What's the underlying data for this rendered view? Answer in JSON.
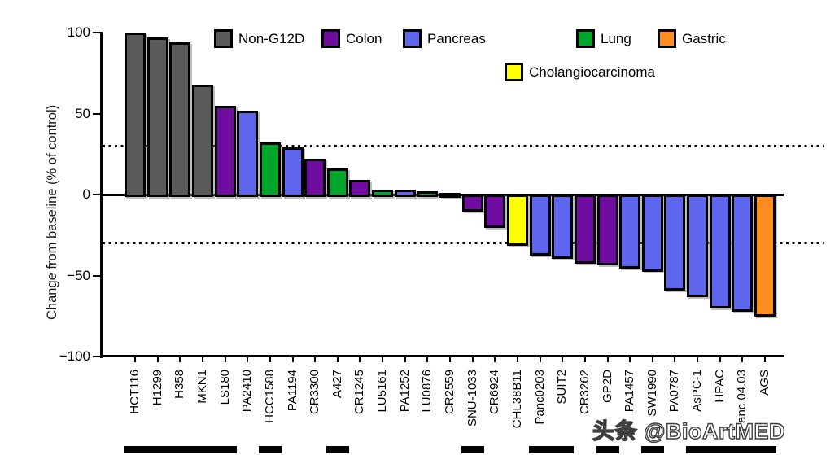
{
  "watermark": "头条 @BioArtMED",
  "chart_data": {
    "type": "bar",
    "title": "",
    "xlabel": "",
    "ylabel": "Change from baseline (% of control)",
    "ylim": [
      -100,
      100
    ],
    "grid": false,
    "legend_position": "top",
    "yticks": [
      {
        "label": "100",
        "value": 100
      },
      {
        "label": "50",
        "value": 50
      },
      {
        "label": "0",
        "value": 0
      },
      {
        "label": "−50",
        "value": -50
      },
      {
        "label": "−100",
        "value": -100
      }
    ],
    "reference_lines": [
      30,
      -30
    ],
    "legend": [
      {
        "label": "Non-G12D",
        "category": "non_g12d",
        "color": "#5A5A5A"
      },
      {
        "label": "Colon",
        "category": "colon",
        "color": "#6E0DA0"
      },
      {
        "label": "Pancreas",
        "category": "pancreas",
        "color": "#5F66EE"
      },
      {
        "label": "Lung",
        "category": "lung",
        "color": "#00A52B"
      },
      {
        "label": "Gastric",
        "category": "gastric",
        "color": "#FF8C1E"
      },
      {
        "label": "Cholangiocarcinoma",
        "category": "cholangiocarcinoma",
        "color": "#FFFF00"
      }
    ],
    "bars": [
      {
        "label": "HCT116",
        "category": "non_g12d",
        "value": 100
      },
      {
        "label": "H1299",
        "category": "non_g12d",
        "value": 97
      },
      {
        "label": "H358",
        "category": "non_g12d",
        "value": 94
      },
      {
        "label": "MKN1",
        "category": "non_g12d",
        "value": 68
      },
      {
        "label": "LS180",
        "category": "colon",
        "value": 55
      },
      {
        "label": "PA2410",
        "category": "pancreas",
        "value": 52
      },
      {
        "label": "HCC1588",
        "category": "lung",
        "value": 32
      },
      {
        "label": "PA1194",
        "category": "pancreas",
        "value": 29
      },
      {
        "label": "CR3300",
        "category": "colon",
        "value": 22
      },
      {
        "label": "A427",
        "category": "lung",
        "value": 16
      },
      {
        "label": "CR1245",
        "category": "colon",
        "value": 9
      },
      {
        "label": "LU5161",
        "category": "lung",
        "value": 3
      },
      {
        "label": "PA1252",
        "category": "pancreas",
        "value": 3
      },
      {
        "label": "LU0876",
        "category": "lung",
        "value": 2
      },
      {
        "label": "CR2559",
        "category": "colon",
        "value": 1
      },
      {
        "label": "SNU-1033",
        "category": "colon",
        "value": -9
      },
      {
        "label": "CR6924",
        "category": "colon",
        "value": -19
      },
      {
        "label": "CHL38B11",
        "category": "cholangiocarcinoma",
        "value": -30
      },
      {
        "label": "Panc0203",
        "category": "pancreas",
        "value": -36
      },
      {
        "label": "SUIT2",
        "category": "pancreas",
        "value": -38
      },
      {
        "label": "CR3262",
        "category": "colon",
        "value": -41
      },
      {
        "label": "GP2D",
        "category": "colon",
        "value": -42
      },
      {
        "label": "PA1457",
        "category": "pancreas",
        "value": -44
      },
      {
        "label": "SW1990",
        "category": "pancreas",
        "value": -46
      },
      {
        "label": "PA0787",
        "category": "pancreas",
        "value": -58
      },
      {
        "label": "AsPC-1",
        "category": "pancreas",
        "value": -62
      },
      {
        "label": "HPAC",
        "category": "pancreas",
        "value": -69
      },
      {
        "label": "Panc 04.03",
        "category": "pancreas",
        "value": -71
      },
      {
        "label": "AGS",
        "category": "gastric",
        "value": -74
      }
    ],
    "group_markers": [
      [
        0,
        4
      ],
      [
        6,
        6
      ],
      [
        9,
        9
      ],
      [
        15,
        15
      ],
      [
        18,
        19
      ],
      [
        21,
        21
      ],
      [
        23,
        23
      ],
      [
        25,
        28
      ]
    ]
  }
}
